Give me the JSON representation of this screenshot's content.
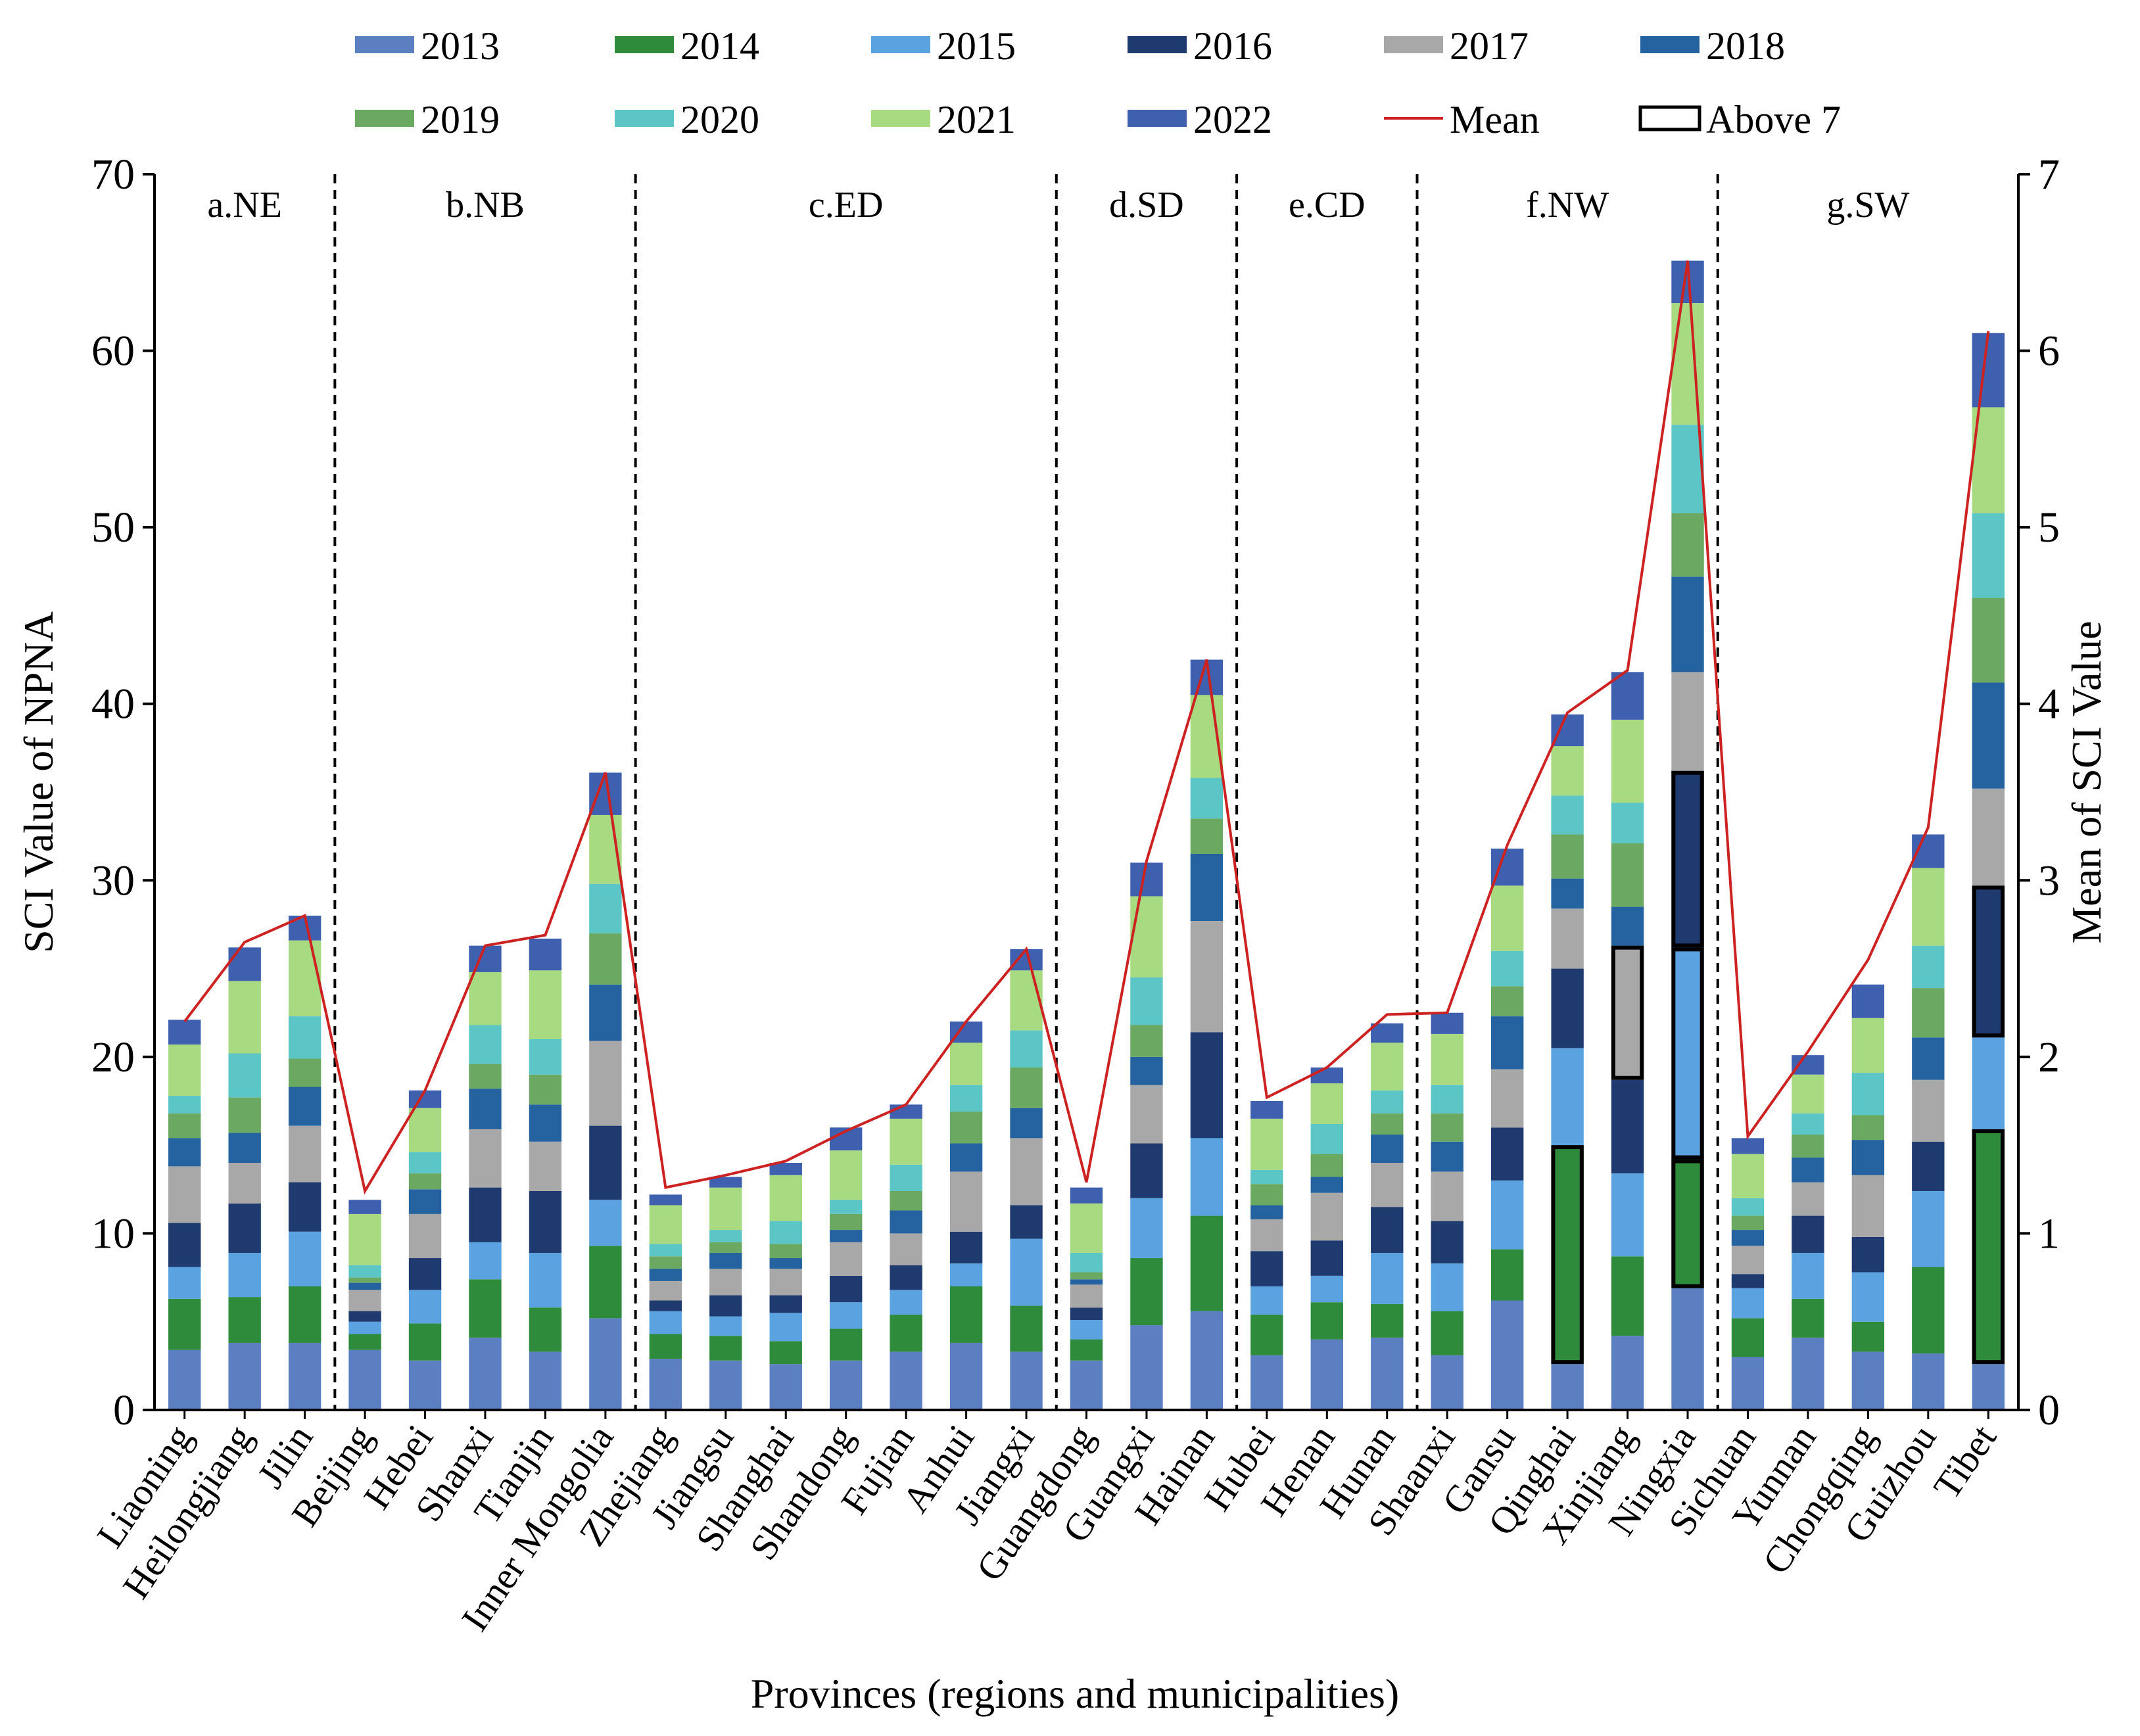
{
  "chart_data": {
    "type": "bar",
    "stacked": true,
    "title": "",
    "xlabel": "Provinces (regions and municipalities)",
    "ylabel": "SCI Value of NPNA",
    "ylabel_right": "Mean of SCI Value",
    "ylim": [
      0,
      70
    ],
    "ylim_right": [
      0,
      7
    ],
    "yticks": [
      "0",
      "10",
      "20",
      "30",
      "40",
      "50",
      "60",
      "70"
    ],
    "yticks_right": [
      "0",
      "1",
      "2",
      "3",
      "4",
      "5",
      "6",
      "7"
    ],
    "categories": [
      "Liaoning",
      "Heilongjiang",
      "Jilin",
      "Beijing",
      "Hebei",
      "Shanxi",
      "Tianjin",
      "Inner Mongolia",
      "Zhejiang",
      "Jiangsu",
      "Shanghai",
      "Shandong",
      "Fujian",
      "Anhui",
      "Jiangxi",
      "Guangdong",
      "Guangxi",
      "Hainan",
      "Hubei",
      "Henan",
      "Hunan",
      "Shaanxi",
      "Gansu",
      "Qinghai",
      "Xinjiang",
      "Ningxia",
      "Sichuan",
      "Yunnan",
      "Chongqing",
      "Guizhou",
      "Tibet"
    ],
    "regions": [
      {
        "label": "a.NE",
        "start": 0,
        "end": 2
      },
      {
        "label": "b.NB",
        "start": 3,
        "end": 7
      },
      {
        "label": "c.ED",
        "start": 8,
        "end": 14
      },
      {
        "label": "d.SD",
        "start": 15,
        "end": 17
      },
      {
        "label": "e.CD",
        "start": 18,
        "end": 20
      },
      {
        "label": "f.NW",
        "start": 21,
        "end": 25
      },
      {
        "label": "g.SW",
        "start": 26,
        "end": 30
      }
    ],
    "series": [
      {
        "name": "2013",
        "color": "#5B7FC1",
        "values": [
          3.4,
          3.8,
          3.8,
          3.4,
          2.8,
          4.1,
          3.3,
          5.2,
          2.9,
          2.8,
          2.6,
          2.8,
          3.3,
          3.8,
          3.3,
          2.8,
          4.8,
          5.6,
          3.1,
          4.0,
          4.1,
          3.1,
          6.2,
          2.6,
          4.2,
          6.9,
          3.0,
          4.1,
          3.3,
          3.2,
          2.6
        ]
      },
      {
        "name": "2014",
        "color": "#2E8B3C",
        "values": [
          2.9,
          2.6,
          3.2,
          0.9,
          2.1,
          3.3,
          2.5,
          4.1,
          1.4,
          1.4,
          1.3,
          1.8,
          2.1,
          3.2,
          2.6,
          1.2,
          3.8,
          5.4,
          2.3,
          2.1,
          1.9,
          2.5,
          2.9,
          12.4,
          4.5,
          7.3,
          2.2,
          2.2,
          1.7,
          4.9,
          13.3
        ]
      },
      {
        "name": "2015",
        "color": "#5BA3E0",
        "values": [
          1.8,
          2.5,
          3.1,
          0.7,
          1.9,
          2.1,
          3.1,
          2.6,
          1.3,
          1.1,
          1.6,
          1.5,
          1.4,
          1.3,
          3.8,
          1.1,
          3.4,
          4.4,
          1.6,
          1.5,
          2.9,
          2.7,
          3.9,
          5.5,
          4.7,
          12.0,
          1.7,
          2.6,
          2.8,
          4.3,
          5.2
        ]
      },
      {
        "name": "2016",
        "color": "#1F3A6E",
        "values": [
          2.5,
          2.8,
          2.8,
          0.6,
          1.8,
          3.1,
          3.5,
          4.2,
          0.6,
          1.2,
          1.0,
          1.5,
          1.4,
          1.8,
          1.9,
          0.7,
          3.1,
          6.0,
          2.0,
          2.0,
          2.6,
          2.4,
          3.0,
          4.5,
          5.3,
          10.0,
          0.8,
          2.1,
          2.0,
          2.8,
          8.6
        ]
      },
      {
        "name": "2017",
        "color": "#A8A8A8",
        "values": [
          3.2,
          2.3,
          3.2,
          1.2,
          2.5,
          3.3,
          2.8,
          4.8,
          1.1,
          1.5,
          1.5,
          1.9,
          1.8,
          3.4,
          3.8,
          1.3,
          3.3,
          6.3,
          1.8,
          2.7,
          2.5,
          2.8,
          3.3,
          3.4,
          7.6,
          5.6,
          1.6,
          1.9,
          3.5,
          3.5,
          5.5
        ]
      },
      {
        "name": "2018",
        "color": "#2563A0",
        "values": [
          1.6,
          1.7,
          2.2,
          0.4,
          1.4,
          2.3,
          2.1,
          3.2,
          0.7,
          0.9,
          0.6,
          0.7,
          1.3,
          1.6,
          1.7,
          0.3,
          1.6,
          3.8,
          0.8,
          0.9,
          1.6,
          1.7,
          3.0,
          1.7,
          2.2,
          5.4,
          0.9,
          1.4,
          2.0,
          2.4,
          6.0
        ]
      },
      {
        "name": "2019",
        "color": "#6BA862",
        "values": [
          1.4,
          2.0,
          1.6,
          0.3,
          0.9,
          1.4,
          1.7,
          2.9,
          0.7,
          0.6,
          0.8,
          0.9,
          1.1,
          1.8,
          2.3,
          0.4,
          1.8,
          2.0,
          1.2,
          1.3,
          1.2,
          1.6,
          1.7,
          2.5,
          3.6,
          3.6,
          0.8,
          1.3,
          1.4,
          2.8,
          4.8
        ]
      },
      {
        "name": "2020",
        "color": "#5CC6C6",
        "values": [
          1.0,
          2.5,
          2.4,
          0.7,
          1.2,
          2.2,
          2.0,
          2.8,
          0.7,
          0.7,
          1.3,
          0.8,
          1.5,
          1.5,
          2.1,
          1.1,
          2.7,
          2.3,
          0.8,
          1.7,
          1.3,
          1.6,
          2.0,
          2.2,
          2.3,
          5.0,
          1.0,
          1.2,
          2.4,
          2.4,
          4.8
        ]
      },
      {
        "name": "2021",
        "color": "#A8DA82",
        "values": [
          2.9,
          4.1,
          4.3,
          2.9,
          2.5,
          3.0,
          3.9,
          3.9,
          2.2,
          2.4,
          2.6,
          2.8,
          2.6,
          2.4,
          3.4,
          2.8,
          4.6,
          4.7,
          2.9,
          2.3,
          2.7,
          2.9,
          3.7,
          2.8,
          4.7,
          6.9,
          2.5,
          2.2,
          3.1,
          4.4,
          6.0
        ]
      },
      {
        "name": "2022",
        "color": "#3F5FAF",
        "values": [
          1.4,
          1.9,
          1.4,
          0.8,
          1.0,
          1.5,
          1.8,
          2.4,
          0.6,
          0.6,
          0.7,
          1.3,
          0.8,
          1.2,
          1.2,
          0.9,
          1.9,
          2.0,
          1.0,
          0.9,
          1.1,
          1.2,
          2.1,
          1.8,
          2.7,
          2.4,
          0.9,
          1.1,
          1.9,
          1.9,
          4.2
        ]
      }
    ],
    "mean_series": {
      "name": "Mean",
      "color": "#CC2222",
      "values": [
        2.2,
        2.65,
        2.8,
        1.24,
        1.81,
        2.63,
        2.69,
        3.61,
        1.26,
        1.33,
        1.41,
        1.58,
        1.73,
        2.2,
        2.61,
        1.29,
        3.11,
        4.25,
        1.77,
        1.94,
        2.24,
        2.25,
        3.2,
        3.95,
        4.19,
        6.51,
        1.55,
        2.03,
        2.55,
        3.3,
        6.11
      ]
    },
    "above7": [
      {
        "category": "Qinghai",
        "series": "2014"
      },
      {
        "category": "Xinjiang",
        "series": "2017"
      },
      {
        "category": "Ningxia",
        "series": "2014"
      },
      {
        "category": "Ningxia",
        "series": "2015"
      },
      {
        "category": "Ningxia",
        "series": "2016"
      },
      {
        "category": "Tibet",
        "series": "2014"
      },
      {
        "category": "Tibet",
        "series": "2016"
      }
    ],
    "legend": [
      "2013",
      "2014",
      "2015",
      "2016",
      "2017",
      "2018",
      "2019",
      "2020",
      "2021",
      "2022",
      "Mean",
      "Above 7"
    ],
    "legend_position": "top"
  }
}
